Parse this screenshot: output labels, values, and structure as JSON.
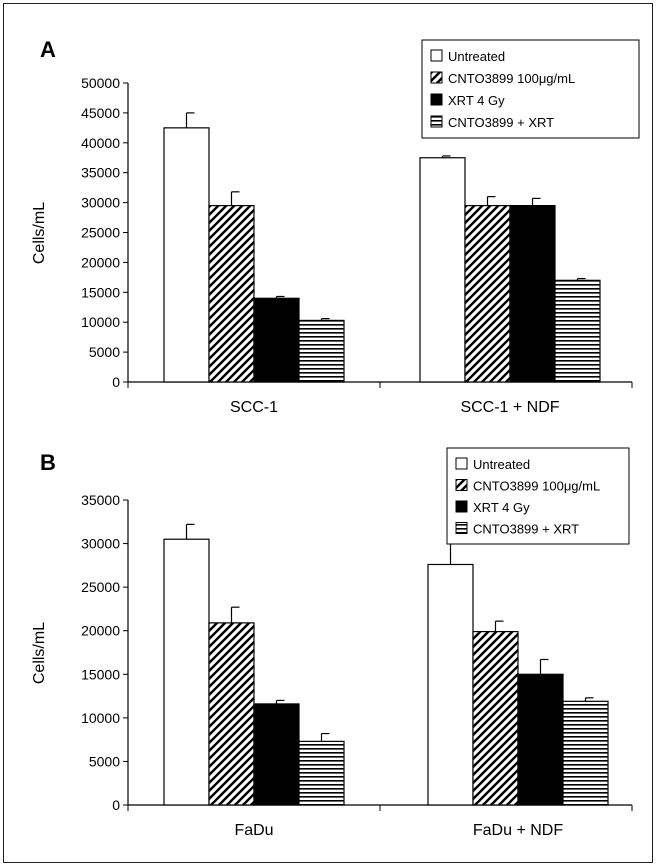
{
  "chart_data": [
    {
      "type": "bar",
      "panel": "A",
      "categories": [
        "SCC-1",
        "SCC-1 + NDF"
      ],
      "ylabel": "Cells/mL",
      "xlabel": "",
      "ylim": [
        0,
        50000
      ],
      "yticks": [
        0,
        5000,
        10000,
        15000,
        20000,
        25000,
        30000,
        35000,
        40000,
        45000,
        50000
      ],
      "legend_position": "top-right",
      "series": [
        {
          "name": "Untreated",
          "pattern": "open",
          "values": [
            42500,
            37500
          ],
          "errors": [
            2500,
            300
          ]
        },
        {
          "name": "CNTO3899 100μg/mL",
          "pattern": "diagonal",
          "values": [
            29500,
            29500
          ],
          "errors": [
            2300,
            1500
          ]
        },
        {
          "name": "XRT 4 Gy",
          "pattern": "solid",
          "values": [
            14000,
            29500
          ],
          "errors": [
            300,
            1200
          ]
        },
        {
          "name": "CNTO3899 + XRT",
          "pattern": "horizontal",
          "values": [
            10300,
            17000
          ],
          "errors": [
            300,
            300
          ]
        }
      ]
    },
    {
      "type": "bar",
      "panel": "B",
      "categories": [
        "FaDu",
        "FaDu + NDF"
      ],
      "ylabel": "Cells/mL",
      "xlabel": "",
      "ylim": [
        0,
        35000
      ],
      "yticks": [
        0,
        5000,
        10000,
        15000,
        20000,
        25000,
        30000,
        35000
      ],
      "legend_position": "top-right",
      "series": [
        {
          "name": "Untreated",
          "pattern": "open",
          "values": [
            30500,
            27600
          ],
          "errors": [
            1700,
            2900
          ]
        },
        {
          "name": "CNTO3899 100μg/mL",
          "pattern": "diagonal",
          "values": [
            20900,
            19900
          ],
          "errors": [
            1800,
            1200
          ]
        },
        {
          "name": "XRT 4 Gy",
          "pattern": "solid",
          "values": [
            11600,
            15000
          ],
          "errors": [
            400,
            1700
          ]
        },
        {
          "name": "CNTO3899 + XRT",
          "pattern": "horizontal",
          "values": [
            7300,
            11900
          ],
          "errors": [
            900,
            400
          ]
        }
      ]
    }
  ],
  "colors": {
    "bar_outline": "#000000",
    "solid_fill": "#000000",
    "open_fill": "#ffffff",
    "background": "#ffffff"
  }
}
